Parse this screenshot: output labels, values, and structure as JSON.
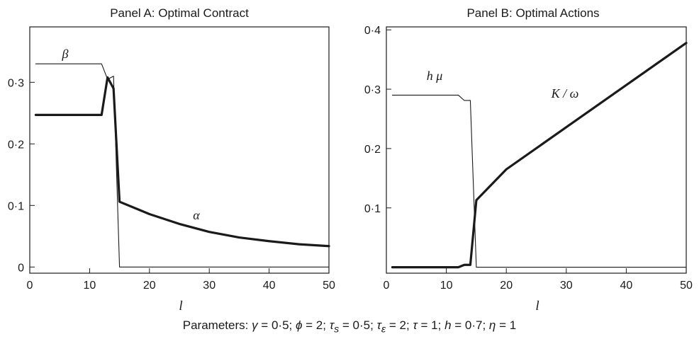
{
  "caption": "Parameters: γ = 0·5; ϕ = 2; τ_s = 0·5; τ_ε = 2; τ = 1; h = 0·7; η = 1",
  "chart_data": [
    {
      "type": "line",
      "title": "Panel A: Optimal Contract",
      "xlabel": "l",
      "ylabel": "",
      "xlim": [
        0,
        50
      ],
      "ylim": [
        -0.01,
        0.39
      ],
      "xticks": [
        0,
        10,
        20,
        30,
        40,
        50
      ],
      "xtick_labels": [
        "0",
        "10",
        "20",
        "30",
        "40",
        "50"
      ],
      "yticks": [
        0,
        0.1,
        0.2,
        0.3
      ],
      "ytick_labels": [
        "0",
        "0·1",
        "0·2",
        "0·3"
      ],
      "grid": false,
      "series": [
        {
          "name": "β",
          "style": "thin",
          "x": [
            1,
            12,
            13,
            14,
            15,
            50
          ],
          "y": [
            0.33,
            0.33,
            0.305,
            0.31,
            0.0,
            0.0
          ]
        },
        {
          "name": "α",
          "style": "thick",
          "x": [
            1,
            12,
            13,
            14,
            15,
            18,
            20,
            25,
            30,
            35,
            40,
            45,
            50
          ],
          "y": [
            0.247,
            0.247,
            0.308,
            0.29,
            0.106,
            0.094,
            0.086,
            0.07,
            0.057,
            0.048,
            0.042,
            0.037,
            0.034
          ]
        }
      ]
    },
    {
      "type": "line",
      "title": "Panel B: Optimal Actions",
      "xlabel": "l",
      "ylabel": "",
      "xlim": [
        0,
        50
      ],
      "ylim": [
        -0.01,
        0.405
      ],
      "xticks": [
        0,
        10,
        20,
        30,
        40,
        50
      ],
      "xtick_labels": [
        "0",
        "10",
        "20",
        "30",
        "40",
        "50"
      ],
      "yticks": [
        0.1,
        0.2,
        0.3,
        0.4
      ],
      "ytick_labels": [
        "0·1",
        "0·2",
        "0·3",
        "0·4"
      ],
      "grid": false,
      "series": [
        {
          "name": "h μ",
          "style": "thin",
          "x": [
            1,
            12,
            13,
            14,
            15,
            50
          ],
          "y": [
            0.29,
            0.29,
            0.281,
            0.281,
            0.0,
            0.0
          ]
        },
        {
          "name": "K / ω",
          "style": "thick",
          "x": [
            1,
            12,
            13,
            14,
            15,
            20,
            30,
            40,
            50
          ],
          "y": [
            0.0,
            0.0,
            0.004,
            0.004,
            0.113,
            0.165,
            0.236,
            0.307,
            0.378
          ]
        }
      ]
    }
  ]
}
